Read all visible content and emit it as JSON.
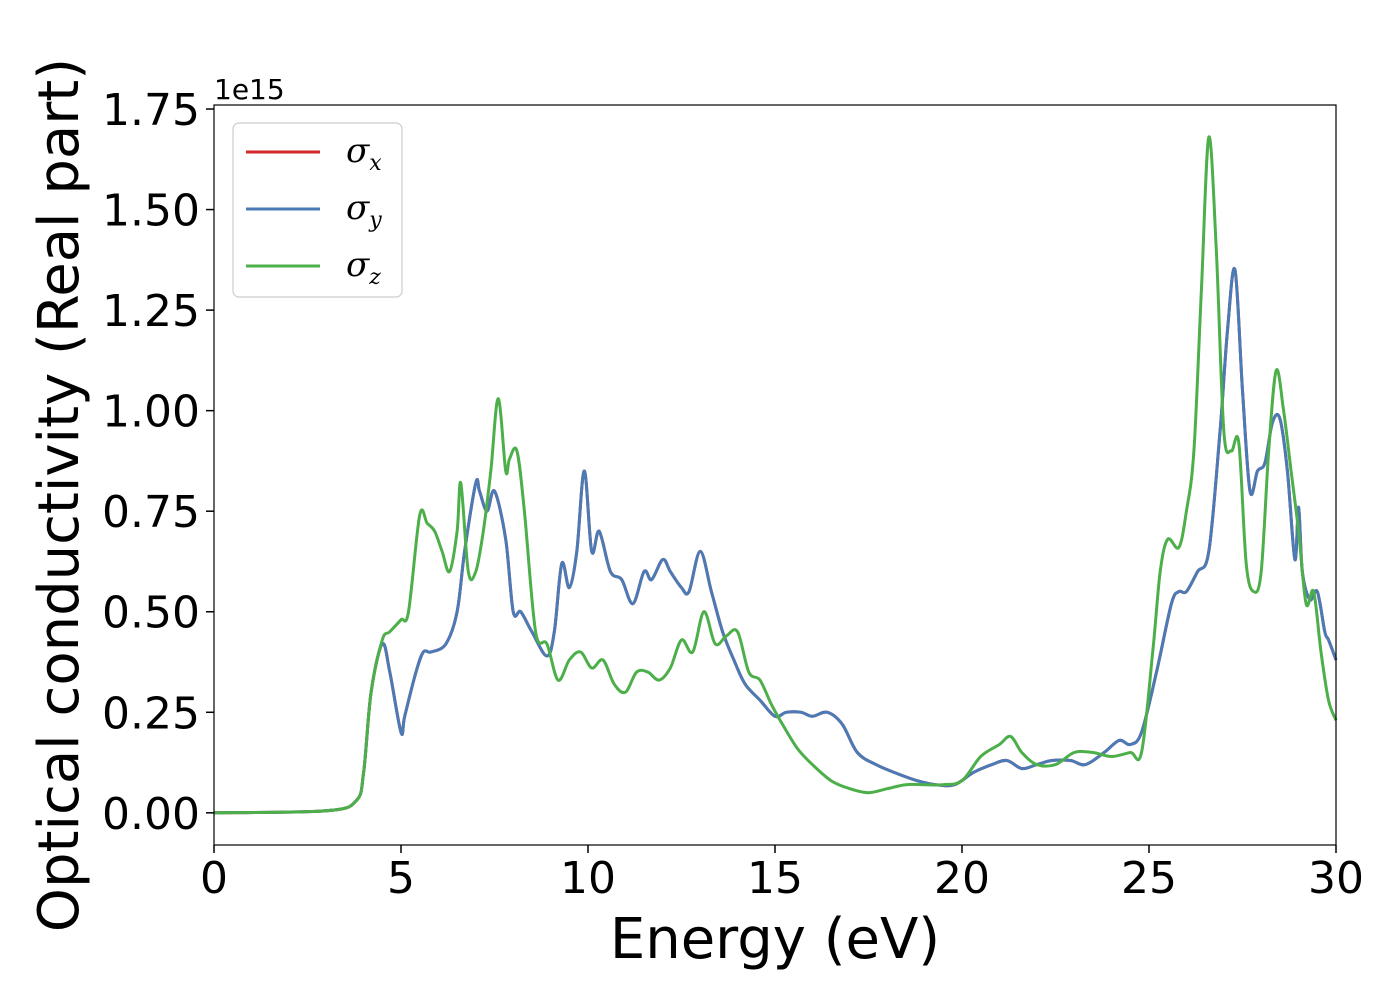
{
  "chart_data": {
    "type": "line",
    "title": "",
    "xlabel": "Energy (eV)",
    "ylabel": "Optical conductivity (Real part)",
    "y_offset_label": "1e15",
    "xlim": [
      0,
      30
    ],
    "ylim": [
      -0.08,
      1.76
    ],
    "x_ticks": [
      0,
      5,
      10,
      15,
      20,
      25,
      30
    ],
    "x_tick_labels": [
      "0",
      "5",
      "10",
      "15",
      "20",
      "25",
      "30"
    ],
    "y_ticks": [
      0.0,
      0.25,
      0.5,
      0.75,
      1.0,
      1.25,
      1.5,
      1.75
    ],
    "y_tick_labels": [
      "0.00",
      "0.25",
      "0.50",
      "0.75",
      "1.00",
      "1.25",
      "1.50",
      "1.75"
    ],
    "grid": false,
    "legend_position": "top-left",
    "series": [
      {
        "name": "x",
        "legend_symbol": "σ",
        "color": "#d62728",
        "x": [
          0,
          3.0,
          3.8,
          4.0,
          4.2,
          4.5,
          4.7,
          5.0,
          5.1,
          5.4,
          5.6,
          5.8,
          6.2,
          6.5,
          6.7,
          7.0,
          7.1,
          7.3,
          7.5,
          7.8,
          8.0,
          8.2,
          8.5,
          8.9,
          9.1,
          9.3,
          9.5,
          9.7,
          9.9,
          10.1,
          10.3,
          10.6,
          10.9,
          11.2,
          11.5,
          11.7,
          12.0,
          12.2,
          12.5,
          12.7,
          13.0,
          13.3,
          13.6,
          13.9,
          14.2,
          14.6,
          15.0,
          15.3,
          15.7,
          16.0,
          16.4,
          16.8,
          17.2,
          17.7,
          18.2,
          18.8,
          19.3,
          19.8,
          20.3,
          20.8,
          21.2,
          21.6,
          22.0,
          22.4,
          22.9,
          23.3,
          23.8,
          24.2,
          24.5,
          24.8,
          25.2,
          25.6,
          25.8,
          26.0,
          26.3,
          26.6,
          26.9,
          27.1,
          27.3,
          27.5,
          27.7,
          27.9,
          28.1,
          28.3,
          28.5,
          28.7,
          28.9,
          29.0,
          29.1,
          29.3,
          29.5,
          29.7,
          29.8,
          30.0
        ],
        "y": [
          0,
          0.005,
          0.03,
          0.1,
          0.3,
          0.42,
          0.35,
          0.2,
          0.24,
          0.35,
          0.4,
          0.4,
          0.42,
          0.5,
          0.65,
          0.82,
          0.8,
          0.75,
          0.8,
          0.68,
          0.5,
          0.5,
          0.45,
          0.39,
          0.45,
          0.62,
          0.56,
          0.65,
          0.85,
          0.65,
          0.7,
          0.6,
          0.58,
          0.52,
          0.6,
          0.58,
          0.63,
          0.6,
          0.56,
          0.55,
          0.65,
          0.55,
          0.45,
          0.38,
          0.32,
          0.28,
          0.24,
          0.25,
          0.25,
          0.24,
          0.25,
          0.22,
          0.15,
          0.12,
          0.1,
          0.08,
          0.07,
          0.07,
          0.1,
          0.12,
          0.13,
          0.11,
          0.12,
          0.13,
          0.13,
          0.12,
          0.15,
          0.18,
          0.17,
          0.2,
          0.35,
          0.52,
          0.55,
          0.55,
          0.6,
          0.65,
          0.95,
          1.2,
          1.35,
          1.05,
          0.8,
          0.85,
          0.87,
          0.97,
          0.98,
          0.85,
          0.63,
          0.76,
          0.6,
          0.53,
          0.55,
          0.45,
          0.43,
          0.38
        ]
      },
      {
        "name": "y",
        "legend_symbol": "σ",
        "color": "#4a7bb7",
        "x": [
          0,
          3.0,
          3.8,
          4.0,
          4.2,
          4.5,
          4.7,
          5.0,
          5.1,
          5.4,
          5.6,
          5.8,
          6.2,
          6.5,
          6.7,
          7.0,
          7.1,
          7.3,
          7.5,
          7.8,
          8.0,
          8.2,
          8.5,
          8.9,
          9.1,
          9.3,
          9.5,
          9.7,
          9.9,
          10.1,
          10.3,
          10.6,
          10.9,
          11.2,
          11.5,
          11.7,
          12.0,
          12.2,
          12.5,
          12.7,
          13.0,
          13.3,
          13.6,
          13.9,
          14.2,
          14.6,
          15.0,
          15.3,
          15.7,
          16.0,
          16.4,
          16.8,
          17.2,
          17.7,
          18.2,
          18.8,
          19.3,
          19.8,
          20.3,
          20.8,
          21.2,
          21.6,
          22.0,
          22.4,
          22.9,
          23.3,
          23.8,
          24.2,
          24.5,
          24.8,
          25.2,
          25.6,
          25.8,
          26.0,
          26.3,
          26.6,
          26.9,
          27.1,
          27.3,
          27.5,
          27.7,
          27.9,
          28.1,
          28.3,
          28.5,
          28.7,
          28.9,
          29.0,
          29.1,
          29.3,
          29.5,
          29.7,
          29.8,
          30.0
        ],
        "y": [
          0,
          0.005,
          0.03,
          0.1,
          0.3,
          0.42,
          0.35,
          0.2,
          0.24,
          0.35,
          0.4,
          0.4,
          0.42,
          0.5,
          0.65,
          0.82,
          0.8,
          0.75,
          0.8,
          0.68,
          0.5,
          0.5,
          0.45,
          0.39,
          0.45,
          0.62,
          0.56,
          0.65,
          0.85,
          0.65,
          0.7,
          0.6,
          0.58,
          0.52,
          0.6,
          0.58,
          0.63,
          0.6,
          0.56,
          0.55,
          0.65,
          0.55,
          0.45,
          0.38,
          0.32,
          0.28,
          0.24,
          0.25,
          0.25,
          0.24,
          0.25,
          0.22,
          0.15,
          0.12,
          0.1,
          0.08,
          0.07,
          0.07,
          0.1,
          0.12,
          0.13,
          0.11,
          0.12,
          0.13,
          0.13,
          0.12,
          0.15,
          0.18,
          0.17,
          0.2,
          0.35,
          0.52,
          0.55,
          0.55,
          0.6,
          0.65,
          0.95,
          1.2,
          1.35,
          1.05,
          0.8,
          0.85,
          0.87,
          0.97,
          0.98,
          0.85,
          0.63,
          0.76,
          0.6,
          0.53,
          0.55,
          0.45,
          0.43,
          0.38
        ]
      },
      {
        "name": "z",
        "legend_symbol": "σ",
        "color": "#4daf4a",
        "x": [
          0,
          3.0,
          3.8,
          4.0,
          4.2,
          4.5,
          4.7,
          5.0,
          5.2,
          5.5,
          5.7,
          5.9,
          6.1,
          6.3,
          6.5,
          6.6,
          6.8,
          7.0,
          7.2,
          7.4,
          7.6,
          7.8,
          7.9,
          8.1,
          8.3,
          8.6,
          8.9,
          9.2,
          9.5,
          9.8,
          10.1,
          10.4,
          10.7,
          11.0,
          11.3,
          11.6,
          11.9,
          12.2,
          12.5,
          12.8,
          13.1,
          13.4,
          13.7,
          14.0,
          14.3,
          14.6,
          14.9,
          15.2,
          15.6,
          16.0,
          16.5,
          17.0,
          17.5,
          18.0,
          18.5,
          19.0,
          19.5,
          20.0,
          20.5,
          21.0,
          21.3,
          21.6,
          22.0,
          22.5,
          23.0,
          23.5,
          24.0,
          24.5,
          24.8,
          25.1,
          25.3,
          25.5,
          25.8,
          26.0,
          26.2,
          26.4,
          26.6,
          26.8,
          27.0,
          27.2,
          27.4,
          27.6,
          27.8,
          28.0,
          28.2,
          28.4,
          28.6,
          28.8,
          29.0,
          29.2,
          29.4,
          29.6,
          29.8,
          30.0
        ],
        "y": [
          0,
          0.005,
          0.03,
          0.1,
          0.3,
          0.43,
          0.45,
          0.48,
          0.5,
          0.74,
          0.72,
          0.7,
          0.65,
          0.6,
          0.7,
          0.82,
          0.6,
          0.6,
          0.7,
          0.85,
          1.03,
          0.85,
          0.88,
          0.9,
          0.75,
          0.45,
          0.42,
          0.33,
          0.38,
          0.4,
          0.36,
          0.38,
          0.32,
          0.3,
          0.35,
          0.35,
          0.33,
          0.36,
          0.43,
          0.4,
          0.5,
          0.42,
          0.44,
          0.45,
          0.35,
          0.33,
          0.27,
          0.22,
          0.16,
          0.12,
          0.08,
          0.06,
          0.05,
          0.06,
          0.07,
          0.07,
          0.07,
          0.08,
          0.14,
          0.17,
          0.19,
          0.15,
          0.12,
          0.12,
          0.15,
          0.15,
          0.14,
          0.15,
          0.15,
          0.4,
          0.6,
          0.68,
          0.66,
          0.75,
          0.9,
          1.3,
          1.68,
          1.4,
          0.95,
          0.9,
          0.92,
          0.62,
          0.55,
          0.6,
          0.9,
          1.1,
          1.0,
          0.85,
          0.7,
          0.52,
          0.55,
          0.4,
          0.28,
          0.23
        ]
      }
    ]
  }
}
